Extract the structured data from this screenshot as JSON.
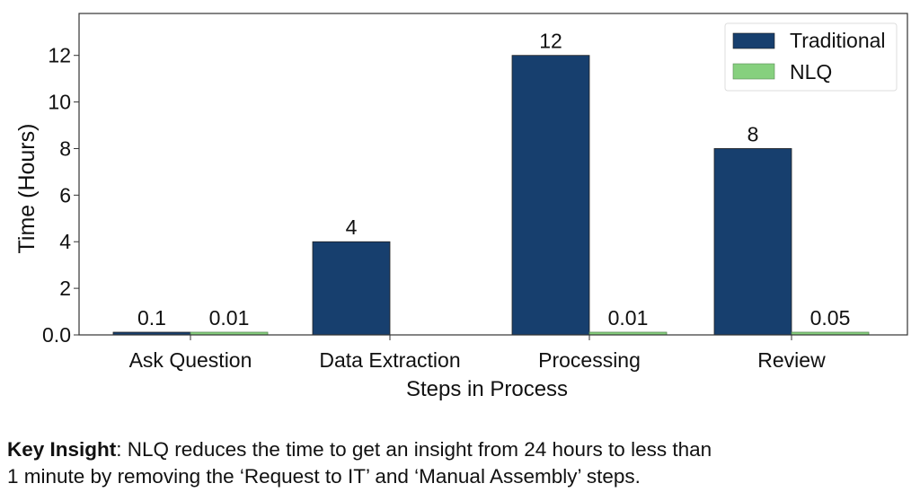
{
  "chart_data": {
    "type": "bar",
    "title": "",
    "xlabel": "Steps in Process",
    "ylabel": "Time (Hours)",
    "categories": [
      "Ask Question",
      "Data Extraction",
      "Processing",
      "Review"
    ],
    "series": [
      {
        "name": "Traditional",
        "color": "#173f6e",
        "values": [
          0.1,
          4,
          12,
          8
        ],
        "labels": [
          "0.1",
          "4",
          "12",
          "8"
        ]
      },
      {
        "name": "NLQ",
        "color": "#86d07e",
        "values": [
          0.01,
          null,
          0.01,
          0.05
        ],
        "labels": [
          "0.01",
          "",
          "0.01",
          "0.05"
        ]
      }
    ],
    "ylim": [
      0,
      13.8
    ],
    "yticks": [
      0,
      2,
      4,
      6,
      8,
      10,
      12
    ],
    "ytick_labels": [
      "0.0",
      "2",
      "4",
      "6",
      "8",
      "10",
      "12"
    ],
    "grid": false,
    "legend_position": "top-right"
  },
  "caption": {
    "bold": "Key Insight",
    "line1": ": NLQ reduces the time to get an insight from 24 hours to less than",
    "line2": "1 minute by removing the ‘Request to IT’ and ‘Manual Assembly’ steps."
  }
}
